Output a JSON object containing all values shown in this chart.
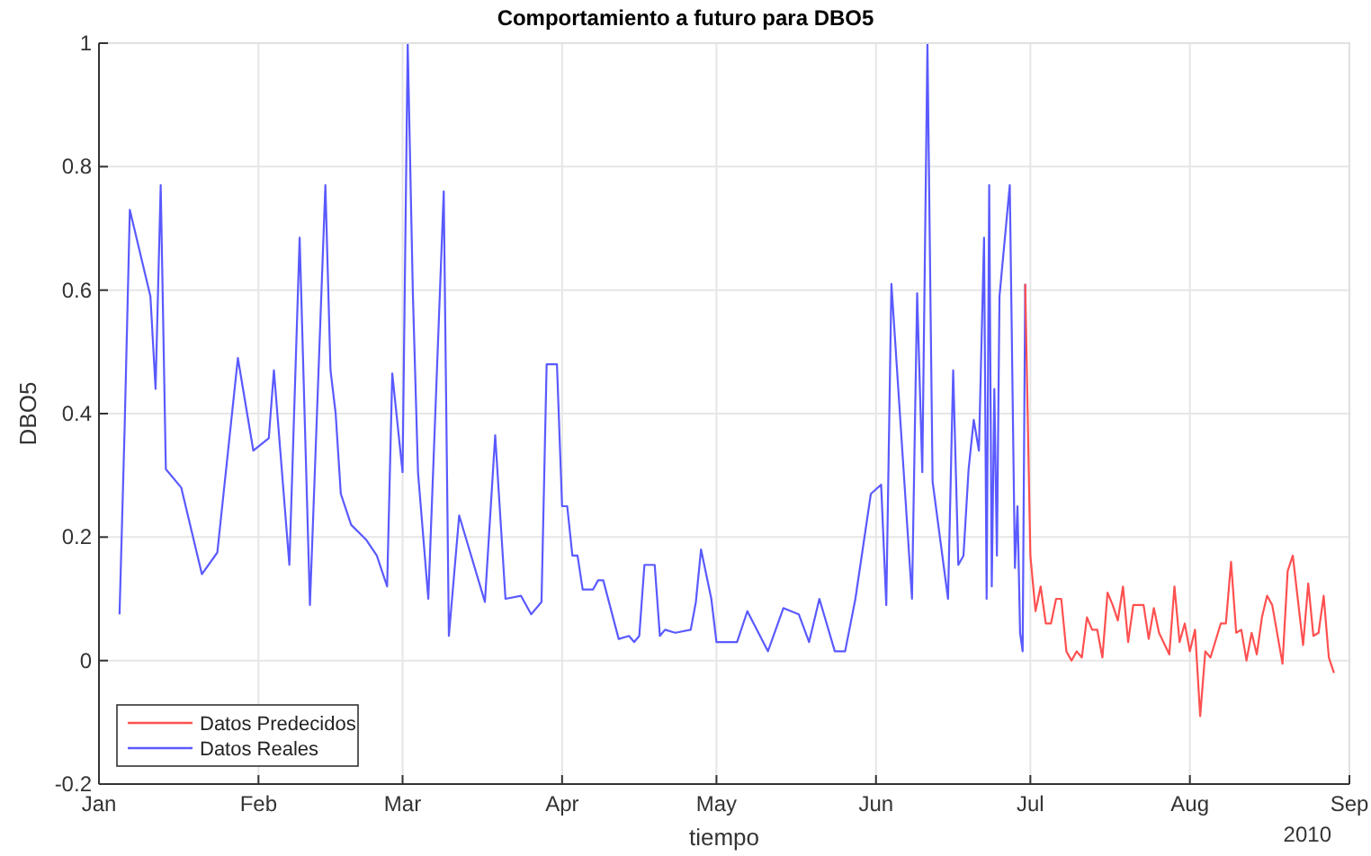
{
  "chart_data": {
    "type": "line",
    "title": "Comportamiento a futuro para DBO5",
    "xlabel": "tiempo",
    "ylabel": "DBO5",
    "annotations": [
      "2010"
    ],
    "xlim": [
      "2010-01-01",
      "2010-09-01"
    ],
    "xticks": [
      {
        "value": "2010-01-01",
        "label": "Jan"
      },
      {
        "value": "2010-02-01",
        "label": "Feb"
      },
      {
        "value": "2010-03-01",
        "label": "Mar"
      },
      {
        "value": "2010-04-01",
        "label": "Apr"
      },
      {
        "value": "2010-05-01",
        "label": "May"
      },
      {
        "value": "2010-06-01",
        "label": "Jun"
      },
      {
        "value": "2010-07-01",
        "label": "Jul"
      },
      {
        "value": "2010-08-01",
        "label": "Aug"
      },
      {
        "value": "2010-09-01",
        "label": "Sep"
      }
    ],
    "ylim": [
      -0.2,
      1
    ],
    "yticks": [
      -0.2,
      0,
      0.2,
      0.4,
      0.6,
      0.8,
      1
    ],
    "grid": true,
    "legend": "bottom left",
    "line_style": "solid",
    "series": [
      {
        "name": "Datos Predecidos",
        "color": "#ff5050",
        "x": [
          "2010-06-30",
          "2010-07-01",
          "2010-07-02",
          "2010-07-03",
          "2010-07-04",
          "2010-07-05",
          "2010-07-06",
          "2010-07-07",
          "2010-07-08",
          "2010-07-09",
          "2010-07-10",
          "2010-07-11",
          "2010-07-12",
          "2010-07-13",
          "2010-07-14",
          "2010-07-15",
          "2010-07-16",
          "2010-07-17",
          "2010-07-18",
          "2010-07-19",
          "2010-07-20",
          "2010-07-21",
          "2010-07-23",
          "2010-07-24",
          "2010-07-25",
          "2010-07-26",
          "2010-07-28",
          "2010-07-29",
          "2010-07-30",
          "2010-07-31",
          "2010-08-01",
          "2010-08-02",
          "2010-08-03",
          "2010-08-04",
          "2010-08-05",
          "2010-08-07",
          "2010-08-08",
          "2010-08-09",
          "2010-08-10",
          "2010-08-11",
          "2010-08-12",
          "2010-08-13",
          "2010-08-14",
          "2010-08-15",
          "2010-08-16",
          "2010-08-17",
          "2010-08-19",
          "2010-08-20",
          "2010-08-21",
          "2010-08-23",
          "2010-08-24",
          "2010-08-25",
          "2010-08-26",
          "2010-08-27",
          "2010-08-28",
          "2010-08-29"
        ],
        "values": [
          0.61,
          0.17,
          0.08,
          0.12,
          0.06,
          0.06,
          0.1,
          0.1,
          0.015,
          0,
          0.015,
          0.005,
          0.07,
          0.05,
          0.05,
          0.005,
          0.11,
          0.09,
          0.065,
          0.12,
          0.03,
          0.09,
          0.09,
          0.035,
          0.085,
          0.045,
          0.01,
          0.12,
          0.03,
          0.06,
          0.015,
          0.05,
          -0.09,
          0.015,
          0.005,
          0.06,
          0.06,
          0.16,
          0.045,
          0.05,
          0,
          0.045,
          0.01,
          0.07,
          0.105,
          0.09,
          -0.005,
          0.145,
          0.17,
          0.025,
          0.125,
          0.04,
          0.045,
          0.105,
          0.005,
          -0.02
        ]
      },
      {
        "name": "Datos Reales",
        "color": "#5a5aff",
        "x": [
          "2010-01-05",
          "2010-01-06",
          "2010-01-07",
          "2010-01-11",
          "2010-01-12",
          "2010-01-13",
          "2010-01-14",
          "2010-01-17",
          "2010-01-21",
          "2010-01-24",
          "2010-01-28",
          "2010-01-31",
          "2010-02-03",
          "2010-02-04",
          "2010-02-07",
          "2010-02-09",
          "2010-02-11",
          "2010-02-14",
          "2010-02-15",
          "2010-02-16",
          "2010-02-17",
          "2010-02-18",
          "2010-02-19",
          "2010-02-22",
          "2010-02-24",
          "2010-02-25",
          "2010-02-26",
          "2010-02-27",
          "2010-03-01",
          "2010-03-02",
          "2010-03-03",
          "2010-03-04",
          "2010-03-06",
          "2010-03-09",
          "2010-03-10",
          "2010-03-12",
          "2010-03-17",
          "2010-03-19",
          "2010-03-21",
          "2010-03-24",
          "2010-03-26",
          "2010-03-28",
          "2010-03-29",
          "2010-03-31",
          "2010-04-01",
          "2010-04-02",
          "2010-04-03",
          "2010-04-04",
          "2010-04-05",
          "2010-04-07",
          "2010-04-08",
          "2010-04-09",
          "2010-04-12",
          "2010-04-14",
          "2010-04-15",
          "2010-04-16",
          "2010-04-17",
          "2010-04-19",
          "2010-04-20",
          "2010-04-21",
          "2010-04-23",
          "2010-04-26",
          "2010-04-27",
          "2010-04-28",
          "2010-04-30",
          "2010-05-01",
          "2010-05-05",
          "2010-05-07",
          "2010-05-11",
          "2010-05-14",
          "2010-05-17",
          "2010-05-19",
          "2010-05-21",
          "2010-05-24",
          "2010-05-26",
          "2010-05-28",
          "2010-05-31",
          "2010-06-02",
          "2010-06-03",
          "2010-06-04",
          "2010-06-08",
          "2010-06-09",
          "2010-06-10",
          "2010-06-11",
          "2010-06-12",
          "2010-06-15",
          "2010-06-16",
          "2010-06-17",
          "2010-06-18",
          "2010-06-19",
          "2010-06-20",
          "2010-06-21",
          "2010-06-22",
          "2010-06-22T12:00",
          "2010-06-23",
          "2010-06-23T12:00",
          "2010-06-24",
          "2010-06-24T12:00",
          "2010-06-25",
          "2010-06-27",
          "2010-06-28",
          "2010-06-28T12:00",
          "2010-06-29",
          "2010-06-29T12:00",
          "2010-06-30"
        ],
        "values": [
          0.075,
          0.38,
          0.73,
          0.59,
          0.44,
          0.77,
          0.31,
          0.28,
          0.14,
          0.175,
          0.49,
          0.34,
          0.36,
          0.47,
          0.155,
          0.685,
          0.09,
          0.77,
          0.47,
          0.4,
          0.27,
          0.245,
          0.22,
          0.195,
          0.17,
          0.145,
          0.12,
          0.465,
          0.305,
          1,
          0.595,
          0.305,
          0.1,
          0.76,
          0.04,
          0.235,
          0.095,
          0.365,
          0.1,
          0.105,
          0.075,
          0.095,
          0.48,
          0.48,
          0.25,
          0.25,
          0.17,
          0.17,
          0.115,
          0.115,
          0.13,
          0.13,
          0.035,
          0.04,
          0.03,
          0.04,
          0.155,
          0.155,
          0.04,
          0.05,
          0.045,
          0.05,
          0.095,
          0.18,
          0.1,
          0.03,
          0.03,
          0.08,
          0.015,
          0.085,
          0.075,
          0.03,
          0.1,
          0.015,
          0.015,
          0.1,
          0.27,
          0.285,
          0.09,
          0.61,
          0.1,
          0.595,
          0.305,
          1,
          0.29,
          0.1,
          0.47,
          0.155,
          0.17,
          0.31,
          0.39,
          0.34,
          0.685,
          0.1,
          0.77,
          0.12,
          0.44,
          0.17,
          0.59,
          0.77,
          0.15,
          0.25,
          0.045,
          0.015,
          0.61
        ]
      }
    ]
  }
}
